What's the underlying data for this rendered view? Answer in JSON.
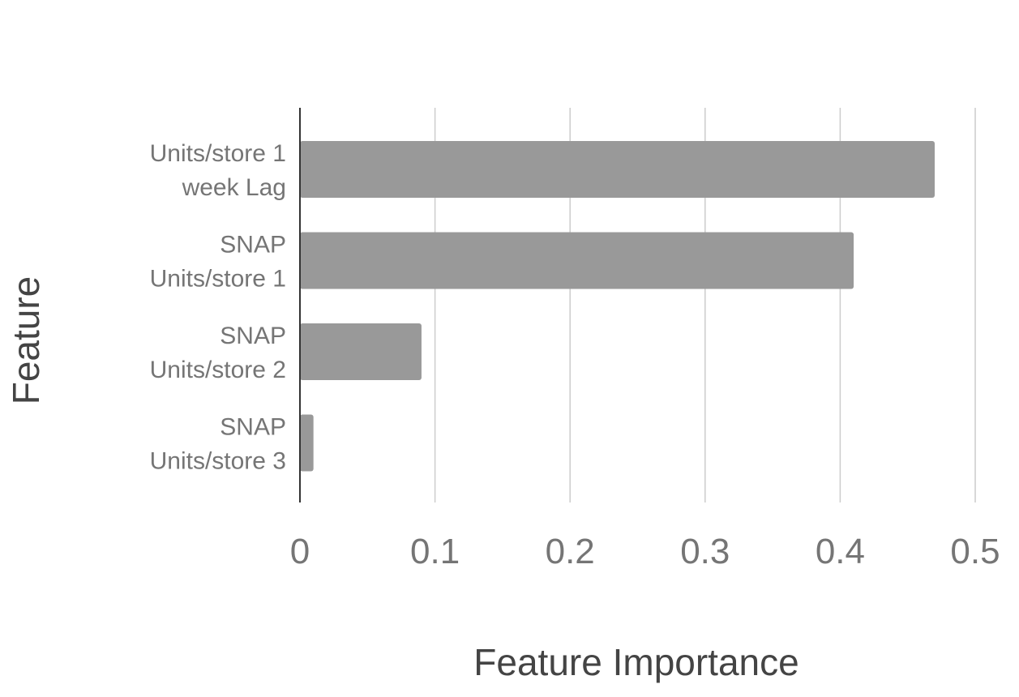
{
  "chart_data": {
    "type": "bar",
    "orientation": "horizontal",
    "categories": [
      [
        "Units/store 1",
        "week Lag"
      ],
      [
        "SNAP",
        "Units/store 1"
      ],
      [
        "SNAP",
        "Units/store 2"
      ],
      [
        "SNAP",
        "Units/store 3"
      ]
    ],
    "values": [
      0.47,
      0.41,
      0.09,
      0.01
    ],
    "xlabel": "Feature Importance",
    "ylabel": "Feature",
    "xlim": [
      0,
      0.5
    ],
    "xticks": [
      "0",
      "0.1",
      "0.2",
      "0.3",
      "0.4",
      "0.5"
    ],
    "xtick_values": [
      0,
      0.1,
      0.2,
      0.3,
      0.4,
      0.5
    ],
    "grid": "vertical",
    "bar_color": "#999999"
  }
}
